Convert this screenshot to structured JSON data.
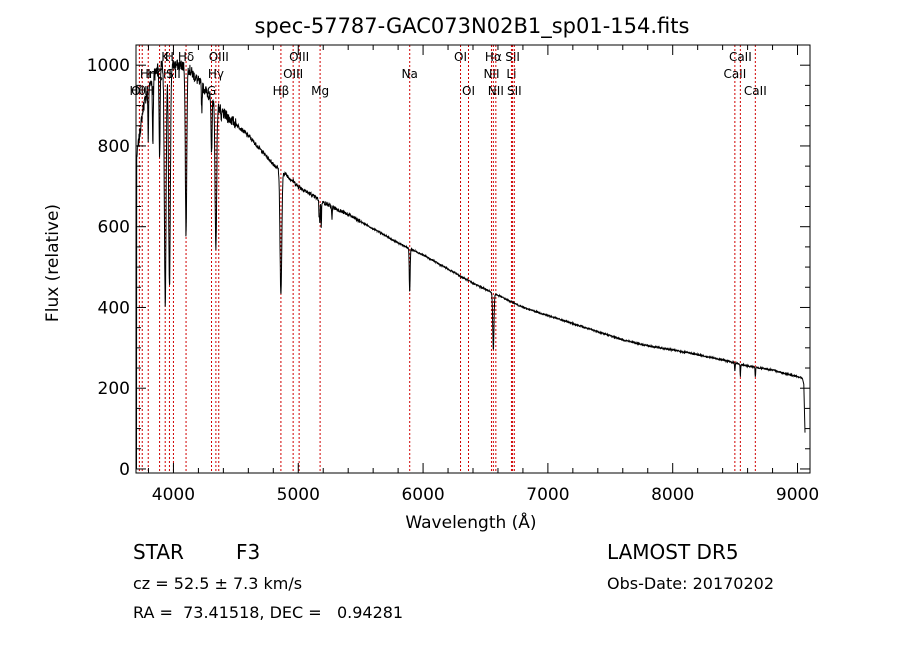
{
  "chart_data": {
    "type": "line",
    "title": "spec-57787-GAC073N02B1_sp01-154.fits",
    "xlabel": "Wavelength (Å)",
    "ylabel": "Flux (relative)",
    "xlim": [
      3700,
      9100
    ],
    "ylim": [
      -10,
      1050
    ],
    "x_ticks": [
      4000,
      5000,
      6000,
      7000,
      8000,
      9000
    ],
    "x_tick_labels": [
      "4000",
      "5000",
      "6000",
      "7000",
      "8000",
      "9000"
    ],
    "y_ticks": [
      0,
      200,
      400,
      600,
      800,
      1000
    ],
    "y_tick_labels": [
      "0",
      "200",
      "400",
      "600",
      "800",
      "1000"
    ],
    "grid": false,
    "continuum": [
      [
        3700,
        760
      ],
      [
        3760,
        900
      ],
      [
        3820,
        960
      ],
      [
        3880,
        1000
      ],
      [
        3940,
        1010
      ],
      [
        4000,
        1000
      ],
      [
        4100,
        1000
      ],
      [
        4200,
        960
      ],
      [
        4300,
        920
      ],
      [
        4400,
        880
      ],
      [
        4500,
        855
      ],
      [
        4600,
        825
      ],
      [
        4700,
        790
      ],
      [
        4800,
        755
      ],
      [
        4900,
        730
      ],
      [
        5000,
        700
      ],
      [
        5100,
        680
      ],
      [
        5200,
        660
      ],
      [
        5400,
        630
      ],
      [
        5600,
        595
      ],
      [
        5800,
        560
      ],
      [
        6000,
        530
      ],
      [
        6200,
        495
      ],
      [
        6400,
        460
      ],
      [
        6600,
        430
      ],
      [
        6800,
        400
      ],
      [
        7000,
        380
      ],
      [
        7200,
        360
      ],
      [
        7400,
        340
      ],
      [
        7600,
        320
      ],
      [
        7800,
        305
      ],
      [
        8000,
        295
      ],
      [
        8200,
        283
      ],
      [
        8400,
        270
      ],
      [
        8600,
        255
      ],
      [
        8800,
        245
      ],
      [
        8980,
        230
      ],
      [
        9040,
        225
      ]
    ],
    "absorption_lines": [
      {
        "center": 3934,
        "depth": 600,
        "width": 10
      },
      {
        "center": 3968,
        "depth": 560,
        "width": 10
      },
      {
        "center": 3889,
        "depth": 230,
        "width": 6
      },
      {
        "center": 3835,
        "depth": 160,
        "width": 5
      },
      {
        "center": 3798,
        "depth": 120,
        "width": 4
      },
      {
        "center": 4101,
        "depth": 420,
        "width": 8
      },
      {
        "center": 4227,
        "depth": 60,
        "width": 4
      },
      {
        "center": 4305,
        "depth": 140,
        "width": 6
      },
      {
        "center": 4340,
        "depth": 360,
        "width": 9
      },
      {
        "center": 4383,
        "depth": 40,
        "width": 3
      },
      {
        "center": 4861,
        "depth": 310,
        "width": 10
      },
      {
        "center": 5167,
        "depth": 45,
        "width": 3
      },
      {
        "center": 5173,
        "depth": 55,
        "width": 3
      },
      {
        "center": 5184,
        "depth": 70,
        "width": 3
      },
      {
        "center": 5270,
        "depth": 35,
        "width": 3
      },
      {
        "center": 5893,
        "depth": 110,
        "width": 5
      },
      {
        "center": 6563,
        "depth": 140,
        "width": 7
      },
      {
        "center": 8498,
        "depth": 20,
        "width": 3
      },
      {
        "center": 8542,
        "depth": 30,
        "width": 3
      },
      {
        "center": 8662,
        "depth": 25,
        "width": 3
      }
    ],
    "edge_features": [
      {
        "x": 3702,
        "y": 340
      },
      {
        "x": 3704,
        "y": 0
      },
      {
        "x": 9050,
        "y": 210
      },
      {
        "x": 9060,
        "y": 90
      }
    ],
    "line_markers": [
      {
        "wavelength": 3727,
        "label": "OII",
        "row": 3
      },
      {
        "wavelength": 3750,
        "label": "HθH",
        "row": 3
      },
      {
        "wavelength": 3798,
        "label": "Hη",
        "row": 2
      },
      {
        "wavelength": 3889,
        "label": "HζH",
        "row": 2
      },
      {
        "wavelength": 3934,
        "label": "K",
        "row": 1
      },
      {
        "wavelength": 3968,
        "label": "H",
        "row": 1
      },
      {
        "wavelength": 4000,
        "label": "SII",
        "row": 2
      },
      {
        "wavelength": 4101,
        "label": "Hδ",
        "row": 1
      },
      {
        "wavelength": 4305,
        "label": "G",
        "row": 3
      },
      {
        "wavelength": 4340,
        "label": "Hγ",
        "row": 2
      },
      {
        "wavelength": 4363,
        "label": "OIII",
        "row": 1
      },
      {
        "wavelength": 4861,
        "label": "Hβ",
        "row": 3
      },
      {
        "wavelength": 4959,
        "label": "OIII",
        "row": 2
      },
      {
        "wavelength": 5007,
        "label": "OIII",
        "row": 1
      },
      {
        "wavelength": 5175,
        "label": "Mg",
        "row": 3
      },
      {
        "wavelength": 5893,
        "label": "Na",
        "row": 2
      },
      {
        "wavelength": 6300,
        "label": "OI",
        "row": 1
      },
      {
        "wavelength": 6364,
        "label": "OI",
        "row": 3
      },
      {
        "wavelength": 6548,
        "label": "NII",
        "row": 2
      },
      {
        "wavelength": 6563,
        "label": "Hα",
        "row": 1
      },
      {
        "wavelength": 6583,
        "label": "NII",
        "row": 3
      },
      {
        "wavelength": 6708,
        "label": "Li",
        "row": 2
      },
      {
        "wavelength": 6717,
        "label": "SII",
        "row": 1
      },
      {
        "wavelength": 6731,
        "label": "SII",
        "row": 3
      },
      {
        "wavelength": 8498,
        "label": "CaII",
        "row": 2
      },
      {
        "wavelength": 8542,
        "label": "CaII",
        "row": 1
      },
      {
        "wavelength": 8662,
        "label": "CaII",
        "row": 3
      }
    ]
  },
  "info": {
    "object_class": "STAR",
    "subclass": "F3",
    "redshift": "cz = 52.5 ± 7.3 km/s",
    "coords": "RA =  73.41518, DEC =   0.94281",
    "survey": "LAMOST DR5",
    "obs_date": "Obs-Date: 20170202"
  }
}
